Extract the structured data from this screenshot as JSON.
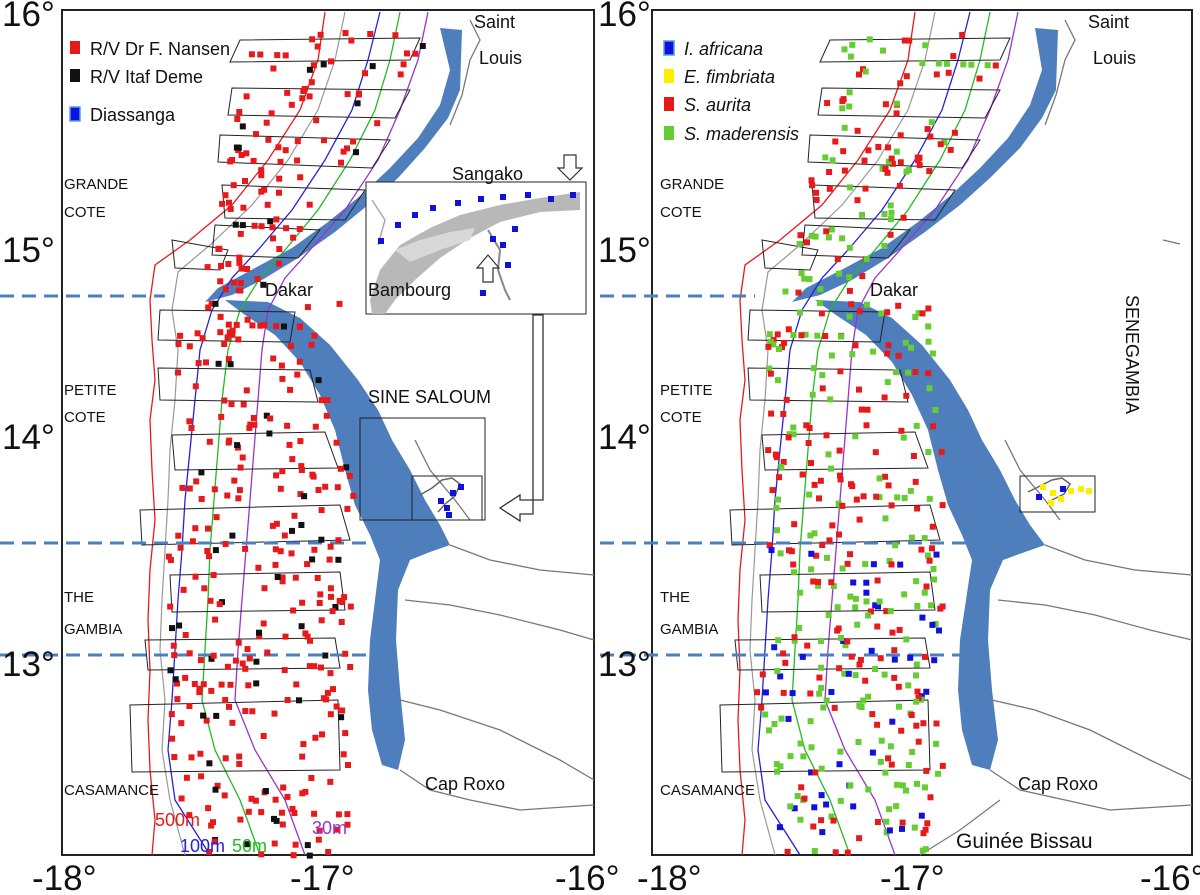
{
  "axes": {
    "y_ticks": [
      "16°",
      "15°",
      "14°",
      "13°"
    ],
    "x_ticks": [
      "-18°",
      "-17°",
      "-16°"
    ]
  },
  "left_map": {
    "legend": [
      {
        "label": "R/V Dr F. Nansen",
        "color": "#e8191b"
      },
      {
        "label": "R/V Itaf Deme",
        "color": "#111111"
      },
      {
        "label": "Diassanga",
        "color": "#1111dd"
      }
    ],
    "places": {
      "saint": "Saint",
      "louis": "Louis",
      "grande": "GRANDE",
      "cote1": "COTE",
      "dakar": "Dakar",
      "petite": "PETITE",
      "cote2": "COTE",
      "the": "THE",
      "gambia": "GAMBIA",
      "casamance": "CASAMANCE",
      "sine_saloum": "SINE SALOUM",
      "cap_roxo": "Cap  Roxo",
      "sangako": "Sangako",
      "bamboung": "Bambourg"
    },
    "isobaths": [
      {
        "label": "500m",
        "color": "#e8191b"
      },
      {
        "label": "100m",
        "color": "#2222dd"
      },
      {
        "label": "50m",
        "color": "#22bb22"
      },
      {
        "label": "30m",
        "color": "#9933cc"
      }
    ]
  },
  "right_map": {
    "legend": [
      {
        "label": "I. africana",
        "color": "#1111dd"
      },
      {
        "label": "E. fimbriata",
        "color": "#ffee00"
      },
      {
        "label": "S. aurita",
        "color": "#e8191b"
      },
      {
        "label": "S. maderensis",
        "color": "#66cc33"
      }
    ],
    "places": {
      "saint": "Saint",
      "louis": "Louis",
      "grande": "GRANDE",
      "cote1": "COTE",
      "dakar": "Dakar",
      "petite": "PETITE",
      "cote2": "COTE",
      "the": "THE",
      "gambia": "GAMBIA",
      "casamance": "CASAMANCE",
      "cap_roxo": "Cap  Roxo",
      "senegambia": "SENEGAMBIA",
      "guinee_bissau": "Guinée Bissau"
    }
  },
  "colors": {
    "water": "#4f7ebd",
    "dashed_line": "#4a7fc0",
    "frame": "#222222"
  }
}
